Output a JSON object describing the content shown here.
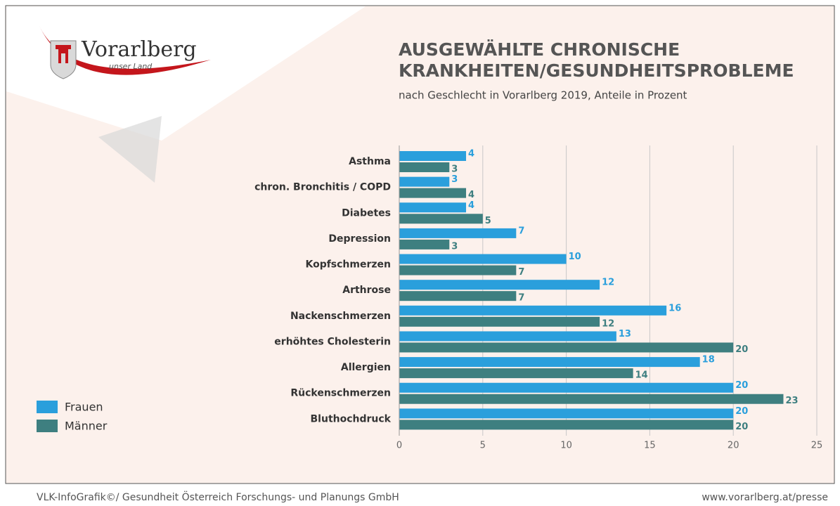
{
  "logo": {
    "name": "Vorarlberg",
    "tagline": "unser Land"
  },
  "chart_data": {
    "type": "bar",
    "orientation": "horizontal",
    "title": [
      "AUSGEWÄHLTE CHRONISCHE",
      "KRANKHEITEN/GESUNDHEITSPROBLEME"
    ],
    "subtitle": "nach Geschlecht in Vorarlberg 2019, Anteile in Prozent",
    "categories": [
      "Asthma",
      "chron. Bronchitis / COPD",
      "Diabetes",
      "Depression",
      "Kopfschmerzen",
      "Arthrose",
      "Nackenschmerzen",
      "erhöhtes Cholesterin",
      "Allergien",
      "Rückenschmerzen",
      "Bluthochdruck"
    ],
    "series": [
      {
        "name": "Frauen",
        "color": "#2a9fdc",
        "values": [
          4,
          3,
          4,
          7,
          10,
          12,
          16,
          13,
          18,
          20,
          20
        ]
      },
      {
        "name": "Männer",
        "color": "#3e7f80",
        "values": [
          3,
          4,
          5,
          3,
          7,
          7,
          12,
          20,
          14,
          23,
          20
        ]
      }
    ],
    "xlim": [
      0,
      25
    ],
    "xticks": [
      0,
      5,
      10,
      15,
      20,
      25
    ],
    "grid": true,
    "legend": "bottom-left"
  },
  "footer": {
    "left": "VLK-InfoGrafik©/ Gesundheit Österreich Forschungs- und Planungs GmbH",
    "right": "www.vorarlberg.at/presse"
  }
}
